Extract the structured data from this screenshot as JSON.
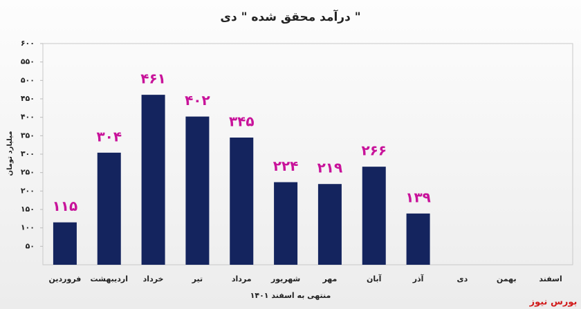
{
  "chart_data": {
    "type": "bar",
    "title": "درآمد محقق شده \" دی \"",
    "y_label": "میلیارد تومان",
    "x_label": "منتهی به اسفند ۱۴۰۱",
    "source": "بورس نیوز",
    "categories": [
      "فروردین",
      "اردیبهشت",
      "خرداد",
      "تیر",
      "مرداد",
      "شهریور",
      "مهر",
      "آبان",
      "آذر",
      "دی",
      "بهمن",
      "اسفند"
    ],
    "values": [
      115,
      304,
      461,
      402,
      345,
      224,
      219,
      266,
      139,
      null,
      null,
      null
    ],
    "value_labels": [
      "۱۱۵",
      "۳۰۴",
      "۴۶۱",
      "۴۰۲",
      "۳۴۵",
      "۲۲۴",
      "۲۱۹",
      "۲۶۶",
      "۱۳۹",
      null,
      null,
      null
    ],
    "color": "#14245e",
    "label_color": "#c8139a",
    "ylim": [
      0,
      600
    ],
    "yticks": [
      {
        "value": 50,
        "label": "۵۰"
      },
      {
        "value": 100,
        "label": "۱۰۰"
      },
      {
        "value": 150,
        "label": "۱۵۰"
      },
      {
        "value": 200,
        "label": "۲۰۰"
      },
      {
        "value": 250,
        "label": "۲۵۰"
      },
      {
        "value": 300,
        "label": "۳۰۰"
      },
      {
        "value": 350,
        "label": "۳۵۰"
      },
      {
        "value": 400,
        "label": "۴۰۰"
      },
      {
        "value": 450,
        "label": "۴۵۰"
      },
      {
        "value": 500,
        "label": "۵۰۰"
      },
      {
        "value": 550,
        "label": "۵۵۰"
      },
      {
        "value": 600,
        "label": "۶۰۰"
      }
    ],
    "grid": false
  }
}
